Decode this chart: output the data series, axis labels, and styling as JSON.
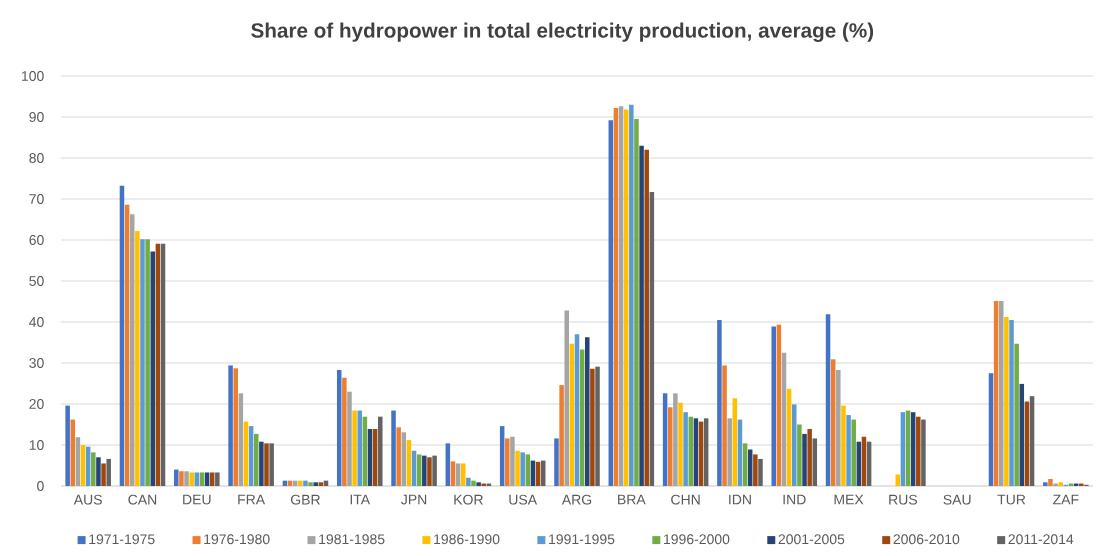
{
  "chart_data": {
    "type": "bar",
    "title": "Share of hydropower in total electricity production, average (%)",
    "categories": [
      "AUS",
      "CAN",
      "DEU",
      "FRA",
      "GBR",
      "ITA",
      "JPN",
      "KOR",
      "USA",
      "ARG",
      "BRA",
      "CHN",
      "IDN",
      "IND",
      "MEX",
      "RUS",
      "SAU",
      "TUR",
      "ZAF"
    ],
    "series": [
      {
        "name": "1971-1975",
        "color": "#4472c4",
        "values": [
          19.6,
          73.2,
          4.0,
          29.4,
          1.3,
          28.3,
          18.4,
          10.4,
          14.6,
          11.6,
          89.2,
          22.6,
          40.5,
          38.9,
          41.9,
          null,
          null,
          27.5,
          0.9
        ]
      },
      {
        "name": "1976-1980",
        "color": "#ed7d31",
        "values": [
          16.2,
          68.6,
          3.6,
          28.7,
          1.3,
          26.4,
          14.3,
          6.0,
          11.6,
          24.6,
          92.2,
          19.2,
          29.4,
          39.3,
          30.9,
          null,
          null,
          45.1,
          1.7
        ]
      },
      {
        "name": "1981-1985",
        "color": "#a5a5a5",
        "values": [
          11.9,
          66.3,
          3.6,
          22.6,
          1.3,
          23.0,
          13.1,
          5.5,
          12.0,
          42.8,
          92.6,
          22.6,
          16.5,
          32.5,
          28.3,
          null,
          null,
          45.1,
          0.6
        ]
      },
      {
        "name": "1986-1990",
        "color": "#ffc000",
        "values": [
          10.0,
          62.2,
          3.3,
          15.7,
          1.3,
          18.4,
          11.2,
          5.5,
          8.6,
          34.7,
          91.8,
          20.3,
          21.4,
          23.7,
          19.6,
          2.8,
          null,
          41.2,
          0.9
        ]
      },
      {
        "name": "1991-1995",
        "color": "#5b9bd5",
        "values": [
          9.6,
          60.2,
          3.3,
          14.6,
          1.3,
          18.4,
          8.6,
          2.0,
          8.2,
          37.0,
          93.0,
          18.0,
          16.2,
          19.9,
          17.3,
          18.0,
          null,
          40.5,
          0.3
        ]
      },
      {
        "name": "1996-2000",
        "color": "#70ad47",
        "values": [
          8.2,
          60.2,
          3.3,
          12.7,
          0.9,
          16.9,
          7.7,
          1.3,
          7.7,
          33.3,
          89.5,
          16.9,
          10.4,
          15.0,
          16.2,
          18.4,
          null,
          34.7,
          0.6
        ]
      },
      {
        "name": "2001-2005",
        "color": "#264478",
        "values": [
          7.0,
          57.2,
          3.3,
          10.8,
          0.9,
          13.9,
          7.4,
          0.9,
          6.2,
          36.3,
          83.0,
          16.5,
          8.9,
          12.7,
          10.8,
          18.0,
          null,
          24.9,
          0.6
        ]
      },
      {
        "name": "2006-2010",
        "color": "#9e480e",
        "values": [
          5.5,
          59.1,
          3.3,
          10.4,
          0.9,
          13.9,
          7.0,
          0.6,
          5.9,
          28.6,
          82.0,
          15.7,
          7.7,
          13.9,
          12.0,
          16.9,
          null,
          20.6,
          0.6
        ]
      },
      {
        "name": "2011-2014",
        "color": "#636363",
        "values": [
          6.6,
          59.1,
          3.3,
          10.4,
          1.3,
          16.9,
          7.4,
          0.6,
          6.2,
          29.1,
          71.7,
          16.5,
          6.6,
          11.6,
          10.8,
          16.2,
          null,
          21.9,
          0.3
        ]
      }
    ],
    "ylim": [
      0,
      100
    ],
    "yticks": [
      0,
      10,
      20,
      30,
      40,
      50,
      60,
      70,
      80,
      90,
      100
    ],
    "grid": "y",
    "legend": "bottom"
  }
}
